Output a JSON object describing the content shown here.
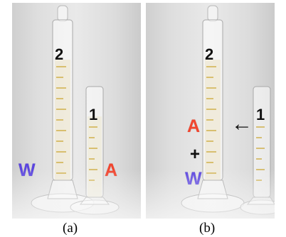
{
  "panels": [
    {
      "caption": "(a)",
      "tall_cylinder_number": "2",
      "short_cylinder_number": "1",
      "labels": {
        "water": "W",
        "alcohol": "A"
      }
    },
    {
      "caption": "(b)",
      "tall_cylinder_number": "2",
      "short_cylinder_number": "1",
      "labels": {
        "alcohol": "A",
        "plus": "+",
        "water": "W",
        "arrow": "←"
      }
    }
  ],
  "colors": {
    "water_label": "#5b45e0",
    "alcohol_label": "#f2452e",
    "graduation": "#c9a227"
  }
}
